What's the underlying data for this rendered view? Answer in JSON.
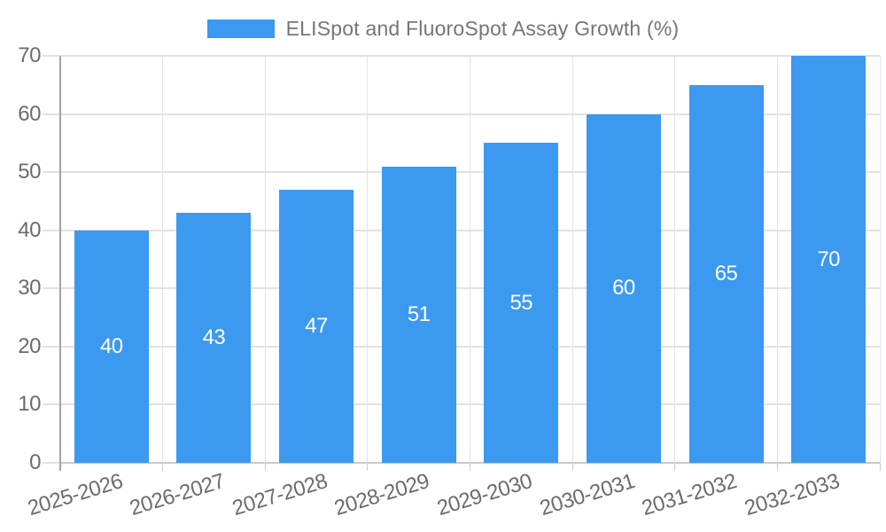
{
  "chart_data": {
    "type": "bar",
    "title": "ELISpot and FluoroSpot Assay Growth (%)",
    "categories": [
      "2025-2026",
      "2026-2027",
      "2027-2028",
      "2028-2029",
      "2029-2030",
      "2030-2031",
      "2031-2032",
      "2032-2033"
    ],
    "values": [
      40,
      43,
      47,
      51,
      55,
      60,
      65,
      70
    ],
    "xlabel": "",
    "ylabel": "",
    "ylim": [
      0,
      70
    ],
    "ytick_step": 10,
    "yticks": [
      0,
      10,
      20,
      30,
      40,
      50,
      60,
      70
    ],
    "grid": true,
    "legend_position": "top",
    "bar_labels_shown": true,
    "colors": {
      "bar": "#3b99ef",
      "bar_value_text": "#ffffff",
      "title_text": "#757575",
      "tick_text": "#6b6b6b",
      "gridline": "#e2e2e2",
      "zero_line": "#c9c9c9",
      "axis_line": "#a3a3a3",
      "background": "#ffffff"
    }
  }
}
